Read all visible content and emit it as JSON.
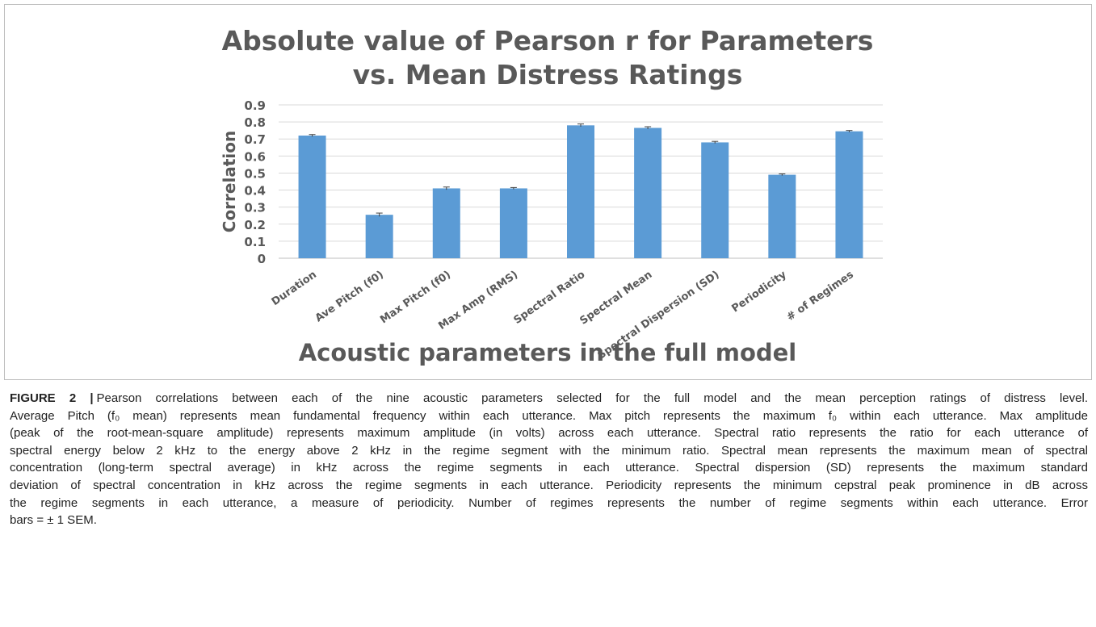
{
  "chart_data": {
    "type": "bar",
    "title": [
      "Absolute value of Pearson r for Parameters",
      "vs. Mean Distress Ratings"
    ],
    "ylabel": "Correlation",
    "xlabel": "Acoustic parameters in the full model",
    "categories": [
      "Duration",
      "Ave Pitch (f0)",
      "Max Pitch (f0)",
      "Max Amp (RMS)",
      "Spectral Ratio",
      "Spectral Mean",
      "Spectral Dispersion (SD)",
      "Periodicity",
      "# of Regimes"
    ],
    "values": [
      0.72,
      0.255,
      0.41,
      0.41,
      0.78,
      0.765,
      0.68,
      0.49,
      0.745
    ],
    "errors": [
      0.006,
      0.01,
      0.008,
      0.005,
      0.008,
      0.007,
      0.006,
      0.005,
      0.005
    ],
    "color": "#5b9bd5",
    "ylim": [
      0,
      0.9
    ],
    "yticks": [
      0,
      0.1,
      0.2,
      0.3,
      0.4,
      0.5,
      0.6,
      0.7,
      0.8,
      0.9
    ],
    "grid": true
  },
  "caption": {
    "label": "FIGURE 2 |",
    "lines": [
      "Pearson correlations between each of the nine acoustic parameters selected for the full model and the mean perception ratings of distress level.",
      "Average Pitch (f₀ mean) represents mean fundamental frequency within each utterance. Max pitch represents the maximum f₀ within each utterance. Max amplitude",
      "(peak of the root-mean-square amplitude) represents maximum amplitude (in volts) across each utterance. Spectral ratio represents the ratio for each utterance of",
      "spectral energy below 2 kHz to the energy above 2 kHz in the regime segment with the minimum ratio. Spectral mean represents the maximum mean of spectral",
      "concentration (long-term spectral average) in kHz across the regime segments in each utterance. Spectral dispersion (SD) represents the maximum standard",
      "deviation of spectral concentration in kHz across the regime segments in each utterance. Periodicity represents the minimum cepstral peak prominence in dB across",
      "the regime segments in each utterance, a measure of periodicity. Number of regimes represents the number of regime segments within each utterance. Error",
      "bars = ± 1 SEM."
    ]
  }
}
